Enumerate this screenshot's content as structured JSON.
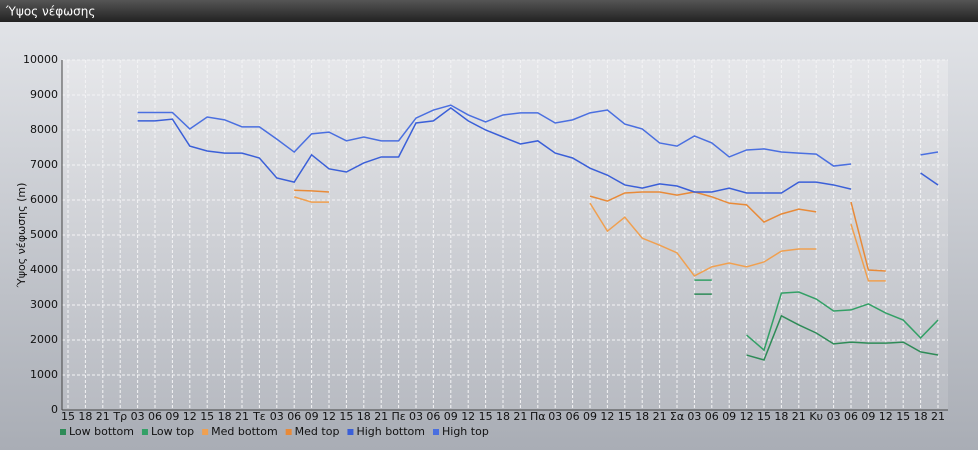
{
  "chart_data": {
    "type": "line",
    "title": "Ύψος νέφωσης",
    "y_label": "Ύψος νέφωσης (m)",
    "categories": [
      "15",
      "18",
      "21",
      "Τρ",
      "03",
      "06",
      "09",
      "12",
      "15",
      "18",
      "21",
      "Τε",
      "03",
      "06",
      "09",
      "12",
      "15",
      "18",
      "21",
      "Πε",
      "03",
      "06",
      "09",
      "12",
      "15",
      "18",
      "21",
      "Πα",
      "03",
      "06",
      "09",
      "12",
      "15",
      "18",
      "21",
      "Σα",
      "03",
      "06",
      "09",
      "12",
      "15",
      "18",
      "21",
      "Κυ",
      "03",
      "06",
      "09",
      "12",
      "15",
      "18",
      "21"
    ],
    "ylim": [
      0,
      10000
    ],
    "yticks": [
      0,
      1000,
      2000,
      3000,
      4000,
      5000,
      6000,
      7000,
      8000,
      9000,
      10000
    ],
    "grid": true,
    "series": [
      {
        "name": "Low bottom",
        "color": "#2e8b57",
        "values": [
          null,
          null,
          null,
          null,
          null,
          null,
          null,
          null,
          null,
          null,
          null,
          null,
          null,
          null,
          null,
          null,
          null,
          null,
          null,
          null,
          null,
          null,
          null,
          null,
          null,
          null,
          null,
          null,
          null,
          null,
          null,
          null,
          null,
          null,
          null,
          null,
          3310,
          3310,
          null,
          1570,
          1430,
          2690,
          2430,
          2200,
          1890,
          1940,
          1910,
          1910,
          1940,
          1660,
          1570
        ]
      },
      {
        "name": "Low top",
        "color": "#33a066",
        "values": [
          null,
          null,
          null,
          null,
          null,
          null,
          null,
          null,
          null,
          null,
          null,
          null,
          null,
          null,
          null,
          null,
          null,
          null,
          null,
          null,
          null,
          null,
          null,
          null,
          null,
          null,
          null,
          null,
          null,
          null,
          null,
          null,
          null,
          null,
          null,
          null,
          3710,
          3710,
          null,
          2140,
          1710,
          3340,
          3370,
          3170,
          2830,
          2860,
          3030,
          2770,
          2570,
          2060,
          2570
        ]
      },
      {
        "name": "Med bottom",
        "color": "#f0a050",
        "values": [
          null,
          null,
          null,
          null,
          null,
          null,
          null,
          null,
          null,
          null,
          null,
          null,
          null,
          6090,
          5940,
          5940,
          null,
          null,
          null,
          null,
          null,
          null,
          null,
          null,
          null,
          null,
          null,
          null,
          null,
          null,
          5910,
          5110,
          5510,
          4910,
          4710,
          4490,
          3830,
          4090,
          4200,
          4090,
          4230,
          4540,
          4600,
          4600,
          null,
          5310,
          3690,
          3690,
          null,
          null,
          null
        ]
      },
      {
        "name": "Med top",
        "color": "#e88a38",
        "values": [
          null,
          null,
          null,
          null,
          null,
          null,
          null,
          null,
          null,
          null,
          null,
          null,
          null,
          6280,
          6260,
          6230,
          null,
          null,
          null,
          null,
          null,
          null,
          null,
          null,
          null,
          null,
          null,
          null,
          null,
          null,
          6110,
          5970,
          6200,
          6230,
          6230,
          6140,
          6230,
          6090,
          5910,
          5860,
          5370,
          5600,
          5740,
          5660,
          null,
          5940,
          4000,
          3970,
          null,
          null,
          null
        ]
      },
      {
        "name": "High bottom",
        "color": "#3a5fd8",
        "values": [
          null,
          null,
          null,
          null,
          8260,
          8260,
          8310,
          7540,
          7400,
          7340,
          7340,
          7200,
          6630,
          6510,
          7290,
          6890,
          6800,
          7060,
          7230,
          7230,
          8200,
          8260,
          8630,
          8260,
          8000,
          7800,
          7600,
          7690,
          7340,
          7200,
          6910,
          6710,
          6430,
          6340,
          6460,
          6400,
          6230,
          6230,
          6340,
          6200,
          6200,
          6200,
          6510,
          6510,
          6430,
          6310,
          null,
          null,
          null,
          6770,
          6430
        ]
      },
      {
        "name": "High top",
        "color": "#4a6fe0",
        "values": [
          null,
          null,
          null,
          null,
          8500,
          8500,
          8500,
          8030,
          8370,
          8290,
          8090,
          8090,
          7740,
          7370,
          7890,
          7940,
          7690,
          7800,
          7690,
          7690,
          8340,
          8570,
          8710,
          8430,
          8230,
          8430,
          8490,
          8490,
          8200,
          8290,
          8490,
          8570,
          8170,
          8030,
          7630,
          7540,
          7830,
          7630,
          7230,
          7430,
          7460,
          7370,
          7340,
          7310,
          6970,
          7030,
          null,
          null,
          null,
          7290,
          7370
        ]
      }
    ]
  }
}
